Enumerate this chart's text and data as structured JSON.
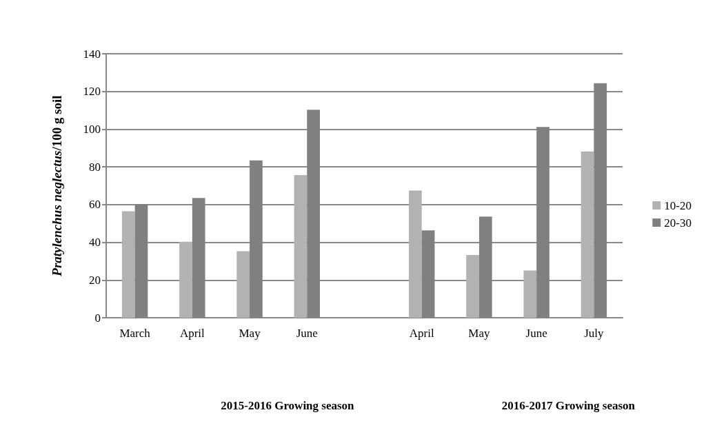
{
  "chart_data": {
    "type": "bar",
    "ylabel": "Pratylenchus neglectus/100 g soil",
    "categories": [
      "March",
      "April",
      "May",
      "June",
      null,
      "April",
      "May",
      "June",
      "July"
    ],
    "series": [
      {
        "name": "10-20",
        "color": "#b2b2b2",
        "values": [
          56.5,
          40.3,
          35.3,
          75.7,
          null,
          67.4,
          33.3,
          25,
          88.2
        ]
      },
      {
        "name": "20-30",
        "color": "#808080",
        "values": [
          60.2,
          63.5,
          83.4,
          110.3,
          null,
          46.3,
          53.6,
          101.2,
          124.4
        ]
      }
    ],
    "ylim": [
      0,
      140
    ],
    "yticks": [
      0,
      20,
      40,
      60,
      80,
      100,
      120,
      140
    ],
    "grid": "y",
    "legend": "right",
    "annotations": [
      "2015-2016 Growing season",
      "2016-2017 Growing season"
    ]
  }
}
